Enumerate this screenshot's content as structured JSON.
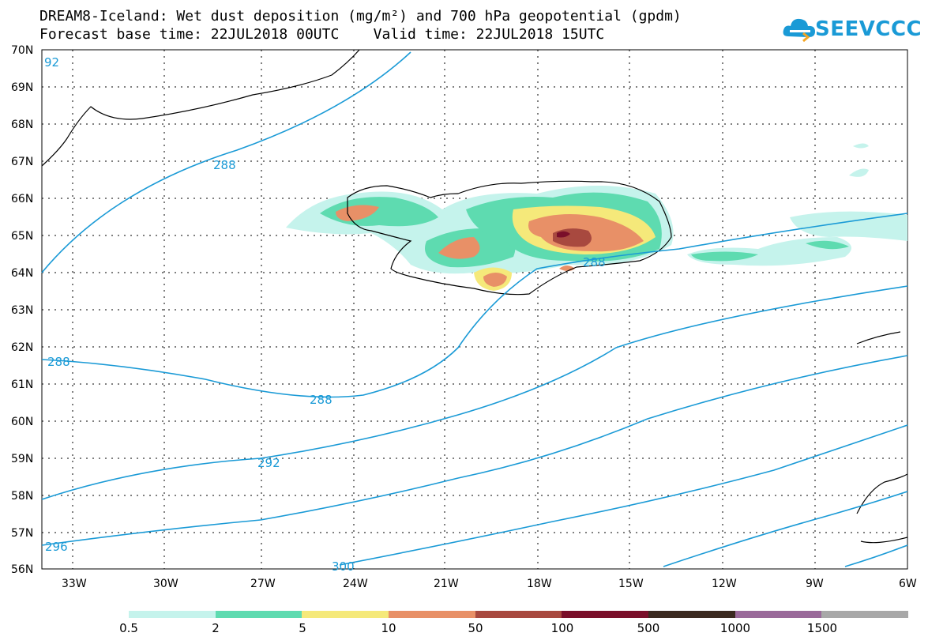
{
  "title": {
    "line1": "DREAM8-Iceland: Wet dust deposition (mg/m²) and 700 hPa geopotential (gpdm)",
    "line2": "Forecast base time: 22JUL2018 00UTC    Valid time: 22JUL2018 15UTC"
  },
  "logo": {
    "text": "SEEVCCC",
    "icon": "cloud-icon"
  },
  "map": {
    "lat_labels": [
      "70N",
      "69N",
      "68N",
      "67N",
      "66N",
      "65N",
      "64N",
      "63N",
      "62N",
      "61N",
      "60N",
      "59N",
      "58N",
      "57N",
      "56N"
    ],
    "lon_labels": [
      "33W",
      "30W",
      "27W",
      "24W",
      "21W",
      "18W",
      "15W",
      "12W",
      "9W",
      "6W"
    ],
    "contour_labels": [
      "92",
      "288",
      "288",
      "288",
      "288",
      "292",
      "296",
      "300"
    ]
  },
  "legend": {
    "labels": [
      "0.5",
      "2",
      "5",
      "10",
      "50",
      "100",
      "500",
      "1000",
      "1500"
    ],
    "colors": [
      "#c5f3ec",
      "#5edbb0",
      "#f5e97a",
      "#e89067",
      "#a8493f",
      "#7a0f2a",
      "#3b2a20",
      "#9a6a9a",
      "#a8a8a8"
    ]
  }
}
